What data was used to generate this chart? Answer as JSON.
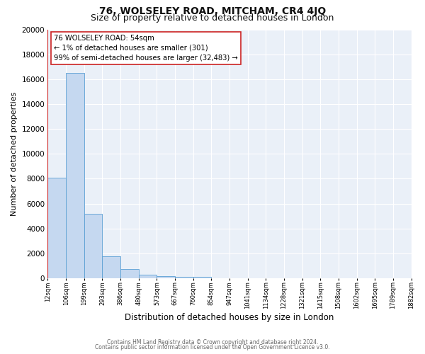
{
  "title": "76, WOLSELEY ROAD, MITCHAM, CR4 4JQ",
  "subtitle": "Size of property relative to detached houses in London",
  "xlabel": "Distribution of detached houses by size in London",
  "ylabel": "Number of detached properties",
  "bin_labels": [
    "12sqm",
    "106sqm",
    "199sqm",
    "293sqm",
    "386sqm",
    "480sqm",
    "573sqm",
    "667sqm",
    "760sqm",
    "854sqm",
    "947sqm",
    "1041sqm",
    "1134sqm",
    "1228sqm",
    "1321sqm",
    "1415sqm",
    "1508sqm",
    "1602sqm",
    "1695sqm",
    "1789sqm",
    "1882sqm"
  ],
  "bar_heights": [
    8100,
    16500,
    5200,
    1750,
    750,
    300,
    200,
    130,
    100,
    0,
    0,
    0,
    0,
    0,
    0,
    0,
    0,
    0,
    0,
    0
  ],
  "bar_color": "#c5d8f0",
  "bar_edge_color": "#5a9fd4",
  "property_line_x": 0.0,
  "property_line_color": "#cc2222",
  "annotation_text": "76 WOLSELEY ROAD: 54sqm\n← 1% of detached houses are smaller (301)\n99% of semi-detached houses are larger (32,483) →",
  "annotation_box_color": "#ffffff",
  "annotation_box_edge_color": "#cc2222",
  "ylim": [
    0,
    20000
  ],
  "yticks": [
    0,
    2000,
    4000,
    6000,
    8000,
    10000,
    12000,
    14000,
    16000,
    18000,
    20000
  ],
  "bg_color": "#eaf0f8",
  "grid_color": "#d0d8e8",
  "footer_line1": "Contains HM Land Registry data © Crown copyright and database right 2024.",
  "footer_line2": "Contains public sector information licensed under the Open Government Licence v3.0.",
  "title_fontsize": 10,
  "subtitle_fontsize": 9
}
